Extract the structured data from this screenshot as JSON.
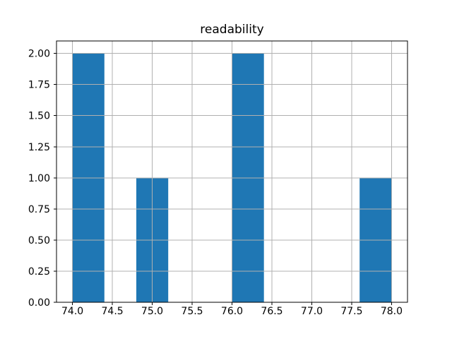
{
  "chart_data": {
    "type": "bar",
    "subtype": "histogram",
    "title": "readability",
    "xlabel": "",
    "ylabel": "",
    "xlim": [
      73.8,
      78.2
    ],
    "ylim": [
      0,
      2.1
    ],
    "grid": true,
    "legend_position": "none",
    "bin_edges": [
      74.0,
      74.4,
      74.8,
      75.2,
      75.6,
      76.0,
      76.4,
      76.8,
      77.2,
      77.6,
      78.0
    ],
    "bin_counts": [
      2,
      0,
      1,
      0,
      0,
      2,
      0,
      0,
      0,
      1
    ],
    "x_tick_values": [
      74.0,
      74.5,
      75.0,
      75.5,
      76.0,
      76.5,
      77.0,
      77.5,
      78.0
    ],
    "x_tick_labels": [
      "74.0",
      "74.5",
      "75.0",
      "75.5",
      "76.0",
      "76.5",
      "77.0",
      "77.5",
      "78.0"
    ],
    "y_tick_values": [
      0,
      0.25,
      0.5,
      0.75,
      1.0,
      1.25,
      1.5,
      1.75,
      2.0
    ],
    "y_tick_labels": [
      "0.00",
      "0.25",
      "0.50",
      "0.75",
      "1.00",
      "1.25",
      "1.50",
      "1.75",
      "2.00"
    ],
    "colors": {
      "bar": "#1f77b4",
      "grid": "#b0b0b0",
      "axis": "#000000",
      "text": "#000000",
      "background": "#ffffff"
    }
  }
}
